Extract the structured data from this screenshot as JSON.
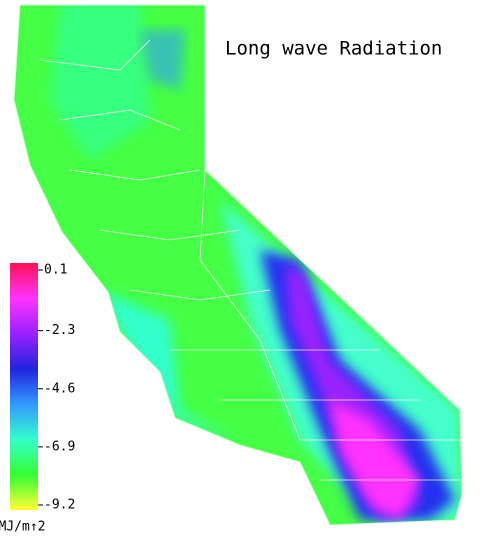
{
  "title": "Long wave Radiation",
  "colorbar": {
    "range": [
      -9.2,
      0.1
    ],
    "ticks": [
      0.1,
      -2.3,
      -4.6,
      -6.9,
      -9.2
    ],
    "unit_label": "MJ/m↑2",
    "colors": [
      "#ffff33",
      "#33ff33",
      "#33ffcc",
      "#3399ff",
      "#2222dd",
      "#9922ff",
      "#ff33ff",
      "#ff1155"
    ]
  }
}
